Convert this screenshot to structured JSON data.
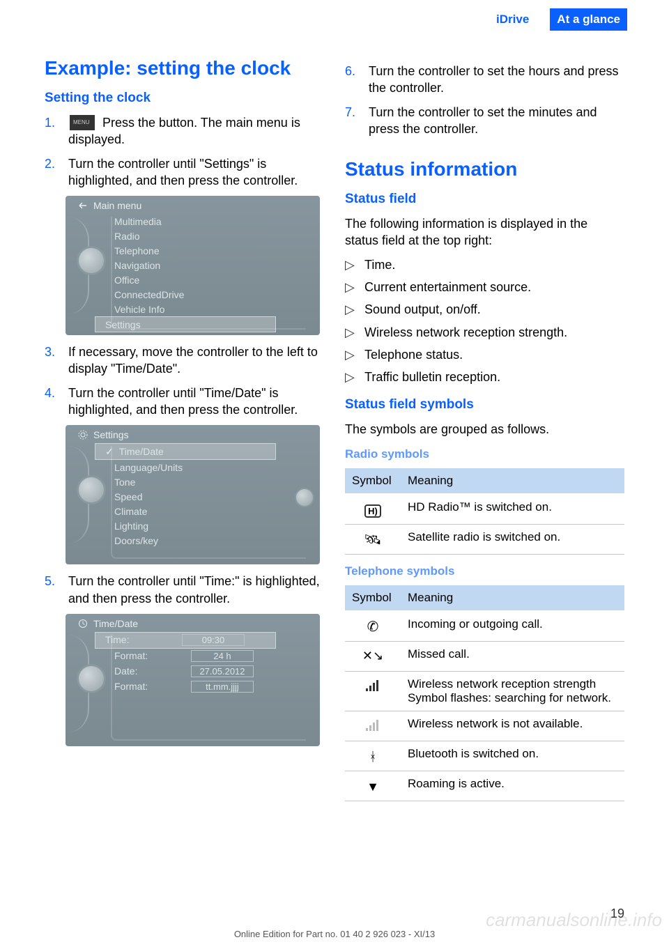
{
  "header": {
    "left_tab": "iDrive",
    "right_tab": "At a glance"
  },
  "left": {
    "h1": "Example: setting the clock",
    "h2": "Setting the clock",
    "steps": [
      {
        "num": "1.",
        "pre_icon": true,
        "text": " Press the button. The main menu is displayed."
      },
      {
        "num": "2.",
        "text": "Turn the controller until \"Settings\" is highlighted, and then press the controller."
      }
    ],
    "screenshot1": {
      "title": "Main menu",
      "items": [
        "Multimedia",
        "Radio",
        "Telephone",
        "Navigation",
        "Office",
        "ConnectedDrive",
        "Vehicle Info",
        "Settings"
      ],
      "highlight_index": 7
    },
    "steps2": [
      {
        "num": "3.",
        "text": "If necessary, move the controller to the left to display \"Time/Date\"."
      },
      {
        "num": "4.",
        "text": "Turn the controller until \"Time/Date\" is highlighted, and then press the controller."
      }
    ],
    "screenshot2": {
      "title": "Settings",
      "items": [
        "Time/Date",
        "Language/Units",
        "Tone",
        "Speed",
        "Climate",
        "Lighting",
        "Doors/key"
      ],
      "highlight_index": 0,
      "check": true,
      "right_knob": true
    },
    "steps3": [
      {
        "num": "5.",
        "text": "Turn the controller until \"Time:\" is highlighted, and then press the controller."
      }
    ],
    "screenshot3": {
      "title": "Time/Date",
      "kv": [
        {
          "k": "Time:",
          "v": "09:30",
          "hl": true
        },
        {
          "k": "Format:",
          "v": "24 h"
        },
        {
          "k": "Date:",
          "v": "27.05.2012"
        },
        {
          "k": "Format:",
          "v": "tt.mm.jjjj"
        }
      ]
    }
  },
  "right": {
    "steps_top": [
      {
        "num": "6.",
        "text": "Turn the controller to set the hours and press the controller."
      },
      {
        "num": "7.",
        "text": "Turn the controller to set the minutes and press the controller."
      }
    ],
    "h1": "Status information",
    "h2_field": "Status field",
    "field_intro": "The following information is displayed in the status field at the top right:",
    "field_items": [
      "Time.",
      "Current entertainment source.",
      "Sound output, on/off.",
      "Wireless network reception strength.",
      "Telephone status.",
      "Traffic bulletin reception."
    ],
    "h2_symbols": "Status field symbols",
    "symbols_intro": "The symbols are grouped as follows.",
    "radio_head": "Radio symbols",
    "table_headers": {
      "symbol": "Symbol",
      "meaning": "Meaning"
    },
    "radio_rows": [
      {
        "meaning": "HD Radio™ is switched on."
      },
      {
        "meaning": "Satellite radio is switched on."
      }
    ],
    "tel_head": "Telephone symbols",
    "tel_rows": [
      {
        "meaning": "Incoming or outgoing call."
      },
      {
        "meaning": "Missed call."
      },
      {
        "meaning": "Wireless network reception strength Symbol flashes: searching for network."
      },
      {
        "meaning": "Wireless network is not available."
      },
      {
        "meaning": "Bluetooth is switched on."
      },
      {
        "meaning": "Roaming is active."
      }
    ]
  },
  "footer": {
    "page": "19",
    "line": "Online Edition for Part no. 01 40 2 926 023 - XI/13",
    "watermark": "carmanualsonline.info"
  }
}
